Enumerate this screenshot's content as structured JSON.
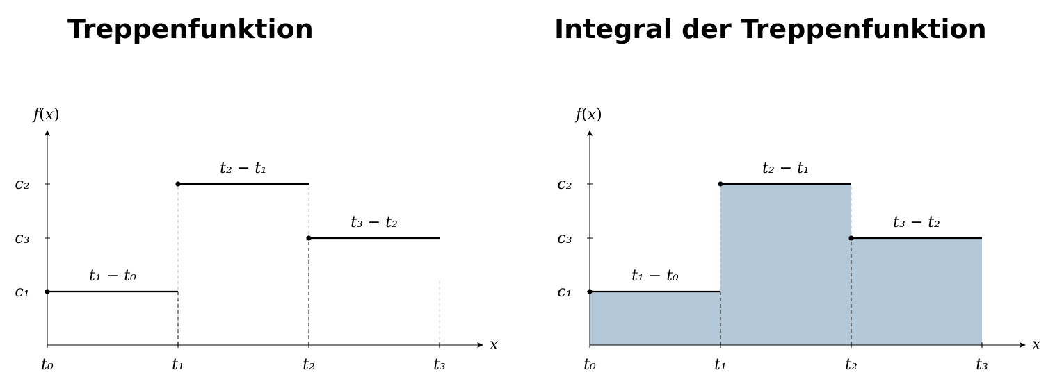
{
  "chart_data": [
    {
      "type": "line",
      "title": "Treppenfunktion",
      "xlabel": "x",
      "ylabel": "f(x)",
      "x_ticks": [
        "t0",
        "t1",
        "t2",
        "t3"
      ],
      "y_ticks": [
        "c1",
        "c3",
        "c2"
      ],
      "filled": false,
      "segments": [
        {
          "x_start": "t0",
          "x_end": "t1",
          "y": "c1",
          "label": "t1 − t0"
        },
        {
          "x_start": "t1",
          "x_end": "t2",
          "y": "c2",
          "label": "t2 − t1"
        },
        {
          "x_start": "t2",
          "x_end": "t3",
          "y": "c3",
          "label": "t3 − t2"
        }
      ]
    },
    {
      "type": "area",
      "title": "Integral der Treppenfunktion",
      "xlabel": "x",
      "ylabel": "f(x)",
      "x_ticks": [
        "t0",
        "t1",
        "t2",
        "t3"
      ],
      "y_ticks": [
        "c1",
        "c3",
        "c2"
      ],
      "filled": true,
      "fill_color": "#b3c8d8",
      "segments": [
        {
          "x_start": "t0",
          "x_end": "t1",
          "y": "c1",
          "label": "t1 − t0"
        },
        {
          "x_start": "t1",
          "x_end": "t2",
          "y": "c2",
          "label": "t2 − t1"
        },
        {
          "x_start": "t2",
          "x_end": "t3",
          "y": "c3",
          "label": "t3 − t2"
        }
      ]
    }
  ]
}
